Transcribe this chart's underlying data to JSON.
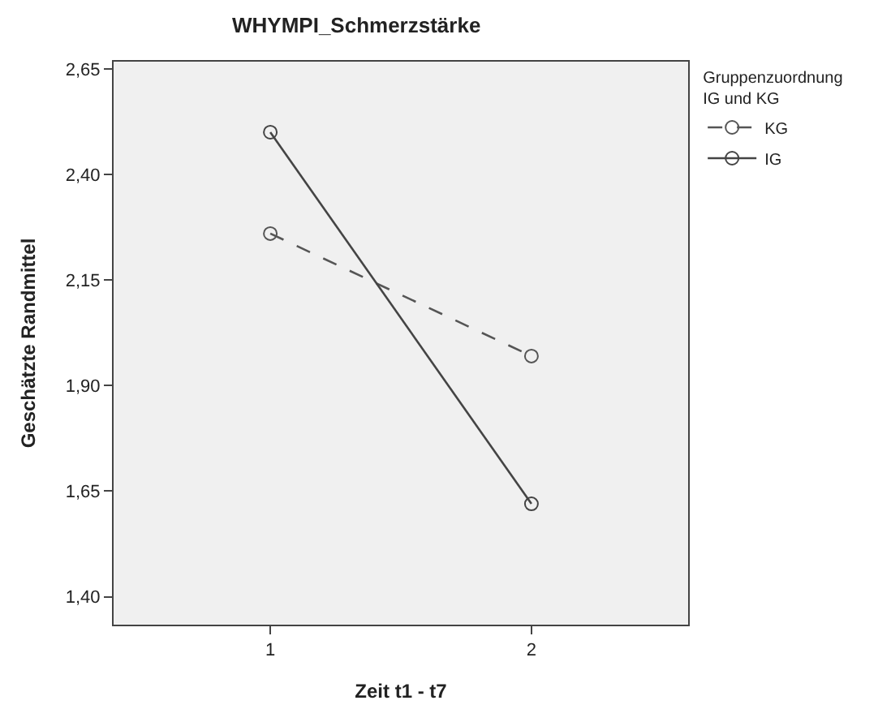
{
  "chart_data": {
    "type": "line",
    "title": "WHYMPI_Schmerzstärke",
    "xlabel": "Zeit t1 - t7",
    "ylabel": "Geschätzte Randmittel",
    "legend_title": "Gruppenzuordnung\nIG und KG",
    "categories": [
      "1",
      "2"
    ],
    "series": [
      {
        "name": "KG",
        "color": "#555555",
        "values": [
          2.26,
          1.97
        ],
        "line_style": "dashed"
      },
      {
        "name": "IG",
        "color": "#444444",
        "values": [
          2.5,
          1.62
        ],
        "line_style": "solid"
      }
    ],
    "ylim": [
      1.334,
      2.667
    ],
    "yticks": [
      {
        "value": 1.4,
        "label": "1,40"
      },
      {
        "value": 1.65,
        "label": "1,65"
      },
      {
        "value": 1.9,
        "label": "1,90"
      },
      {
        "value": 2.15,
        "label": "2,15"
      },
      {
        "value": 2.4,
        "label": "2,40"
      },
      {
        "value": 2.65,
        "label": "2,65"
      }
    ],
    "marker": "circle",
    "grid": false,
    "legend": "top right"
  }
}
